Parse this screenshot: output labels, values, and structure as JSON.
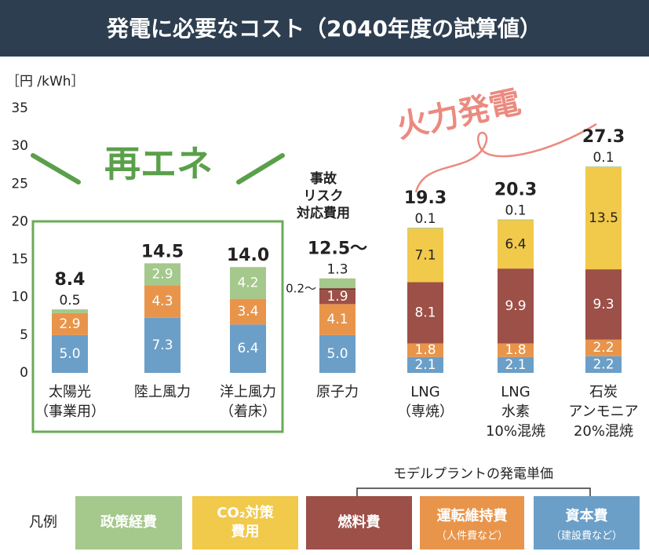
{
  "title": "発電に必要なコスト（2040年度の試算値）",
  "chart_data": {
    "type": "stacked_bar",
    "unit_label": "［円 /kWh］",
    "ylim": [
      0,
      35
    ],
    "yticks": [
      0,
      5,
      10,
      15,
      20,
      25,
      30,
      35
    ],
    "grid": false,
    "categories": [
      [
        "太陽光",
        "（事業用）"
      ],
      [
        "陸上風力"
      ],
      [
        "洋上風力",
        "（着床）"
      ],
      [
        "原子力"
      ],
      [
        "LNG",
        "（専焼）"
      ],
      [
        "LNG",
        "水素",
        "10%混焼"
      ],
      [
        "石炭",
        "アンモニア",
        "20%混焼"
      ]
    ],
    "series": [
      {
        "name": "資本費",
        "note": "（建設費など）",
        "color": "#6b9fc8",
        "values": [
          5.0,
          7.3,
          6.4,
          5.0,
          2.1,
          2.1,
          2.2
        ],
        "value_labels": [
          "5.0",
          "7.3",
          "6.4",
          "5.0",
          "2.1",
          "2.1",
          "2.2"
        ]
      },
      {
        "name": "運転維持費",
        "note": "（人件費など）",
        "color": "#e8954b",
        "values": [
          2.9,
          4.3,
          3.4,
          4.1,
          1.8,
          1.8,
          2.2
        ],
        "value_labels": [
          "2.9",
          "4.3",
          "3.4",
          "4.1",
          "1.8",
          "1.8",
          "2.2"
        ]
      },
      {
        "name": "燃料費",
        "color": "#9c5047",
        "values": [
          null,
          null,
          null,
          1.9,
          8.1,
          9.9,
          9.3
        ],
        "value_labels": [
          null,
          null,
          null,
          "1.9",
          "8.1",
          "9.9",
          "9.3"
        ]
      },
      {
        "name_lines": [
          "事故",
          "リスク",
          "対応費用"
        ],
        "legend": false,
        "color": "#6e2f2a",
        "values": [
          null,
          null,
          null,
          0.2,
          null,
          null,
          null
        ],
        "value_labels": [
          null,
          null,
          null,
          "0.2〜",
          null,
          null,
          null
        ]
      },
      {
        "name_lines": [
          "CO₂対策",
          "費用"
        ],
        "color": "#f1c94b",
        "values": [
          null,
          null,
          null,
          null,
          7.1,
          6.4,
          13.5
        ],
        "value_labels": [
          null,
          null,
          null,
          null,
          "7.1",
          "6.4",
          "13.5"
        ]
      },
      {
        "name": "政策経費",
        "color": "#a5c88c",
        "values": [
          0.5,
          2.9,
          4.2,
          1.3,
          0.1,
          0.1,
          0.1
        ],
        "value_labels": [
          "0.5",
          "2.9",
          "4.2",
          "1.3",
          "0.1",
          "0.1",
          "0.1"
        ]
      }
    ],
    "totals": [
      8.4,
      14.5,
      14.0,
      12.5,
      19.3,
      20.3,
      27.3
    ],
    "total_labels": [
      "8.4",
      "14.5",
      "14.0",
      "12.5〜",
      "19.3",
      "20.3",
      "27.3"
    ],
    "group_labels": [
      "再エネ",
      "火力発電"
    ],
    "legend_title": "凡例",
    "legend_bracket_label": "モデルプラントの発電単価"
  }
}
